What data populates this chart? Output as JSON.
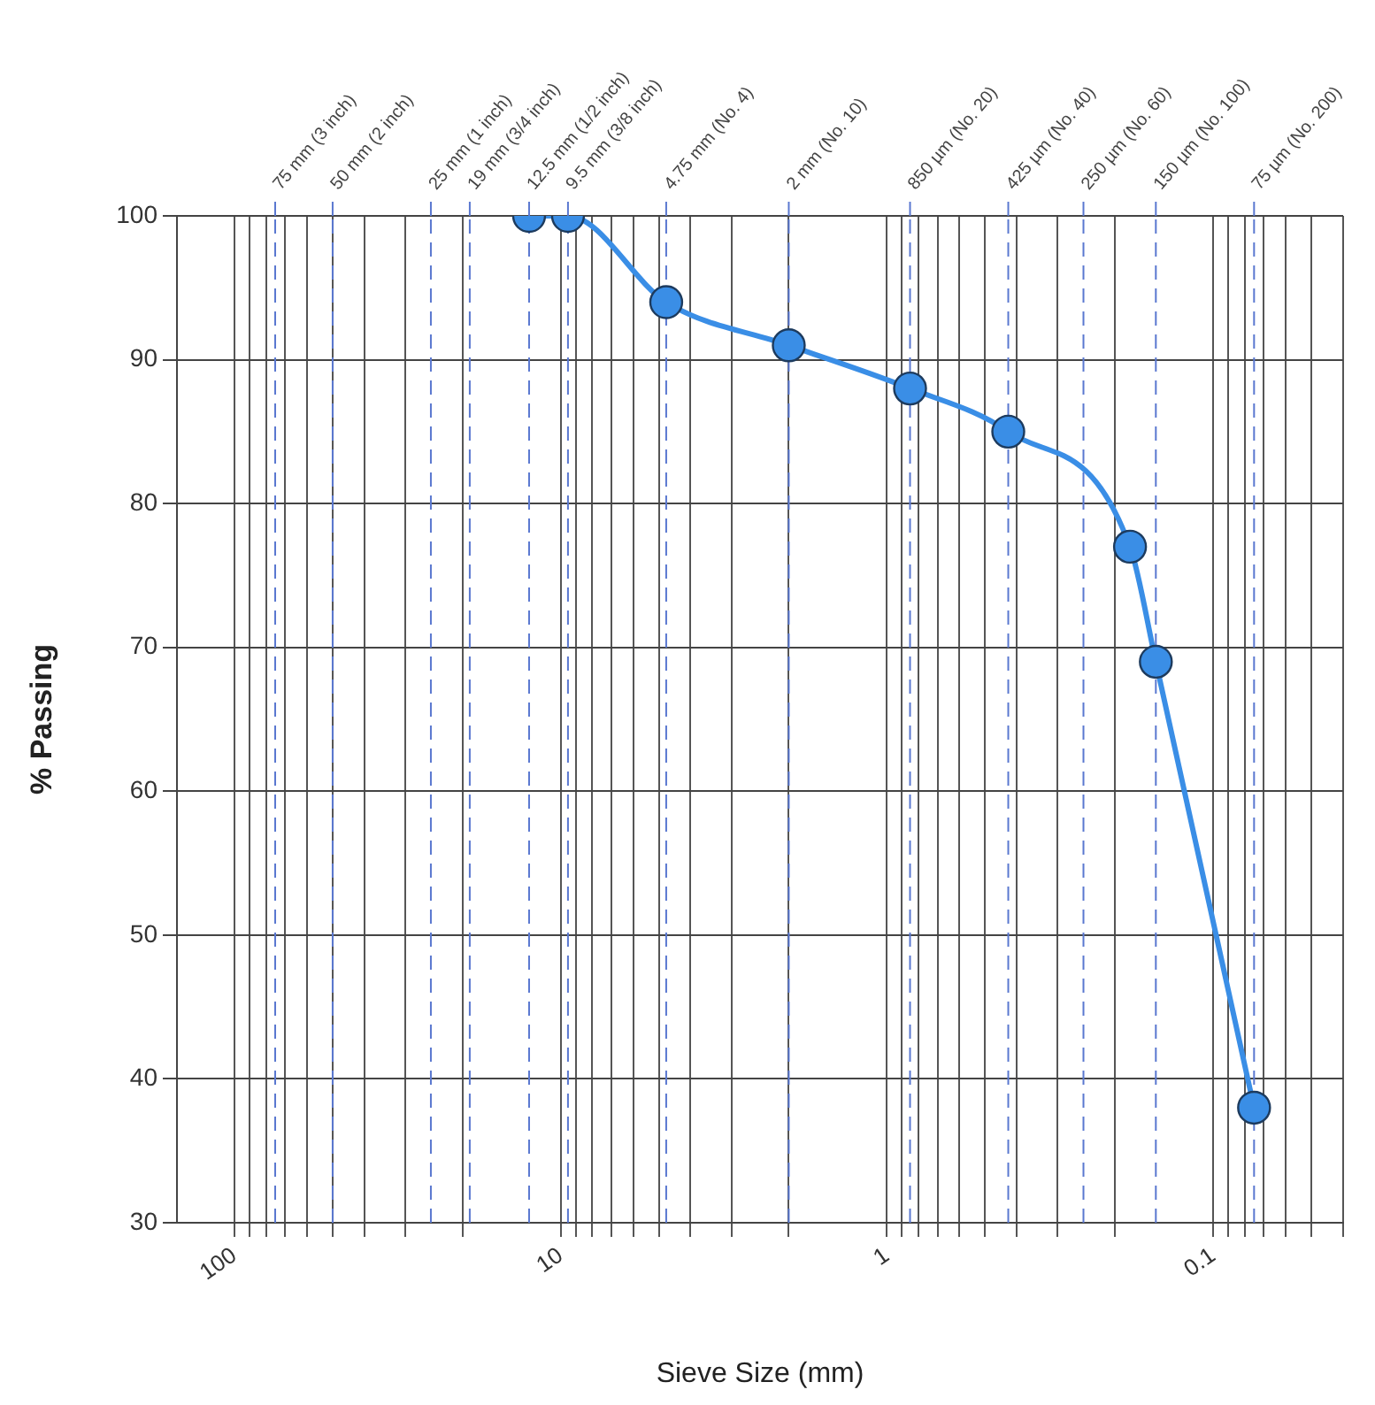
{
  "chart_data": {
    "type": "line",
    "xlabel": "Sieve Size (mm)",
    "ylabel": "% Passing",
    "x": [
      12.5,
      9.5,
      4.75,
      2,
      0.85,
      0.425,
      0.18,
      0.15,
      0.075
    ],
    "series": [
      {
        "color": "#3a8ee6",
        "values": [
          100,
          100,
          94,
          91,
          88,
          85,
          77,
          69,
          38
        ]
      }
    ],
    "log": "x",
    "xlim": [
      150,
      0.04
    ],
    "ylim": [
      30,
      100
    ],
    "xticks": [
      {
        "value": 100,
        "label": "100"
      },
      {
        "value": 90,
        "label": null
      },
      {
        "value": 80,
        "label": null
      },
      {
        "value": 70,
        "label": null
      },
      {
        "value": 60,
        "label": null
      },
      {
        "value": 50,
        "label": null
      },
      {
        "value": 40,
        "label": null
      },
      {
        "value": 30,
        "label": null
      },
      {
        "value": 20,
        "label": null
      },
      {
        "value": 10,
        "label": "10"
      },
      {
        "value": 9,
        "label": null
      },
      {
        "value": 8,
        "label": null
      },
      {
        "value": 7,
        "label": null
      },
      {
        "value": 6,
        "label": null
      },
      {
        "value": 5,
        "label": null
      },
      {
        "value": 4,
        "label": null
      },
      {
        "value": 3,
        "label": null
      },
      {
        "value": 2,
        "label": null
      },
      {
        "value": 1,
        "label": "1"
      },
      {
        "value": 0.9,
        "label": null
      },
      {
        "value": 0.8,
        "label": null
      },
      {
        "value": 0.7,
        "label": null
      },
      {
        "value": 0.6,
        "label": null
      },
      {
        "value": 0.5,
        "label": null
      },
      {
        "value": 0.4,
        "label": null
      },
      {
        "value": 0.3,
        "label": null
      },
      {
        "value": 0.2,
        "label": null
      },
      {
        "value": 0.1,
        "label": "0.1"
      },
      {
        "value": 0.09,
        "label": null
      },
      {
        "value": 0.08,
        "label": null
      },
      {
        "value": 0.07,
        "label": null
      },
      {
        "value": 0.06,
        "label": null
      },
      {
        "value": 0.05,
        "label": null
      },
      {
        "value": 0.04,
        "label": null
      }
    ],
    "yticks": [
      30,
      40,
      50,
      60,
      70,
      80,
      90,
      100
    ],
    "ref_lines": [
      {
        "axis": "x",
        "value": 75,
        "label": "75 mm (3 inch)",
        "color": "#5a78d0",
        "line_style": "dashed"
      },
      {
        "axis": "x",
        "value": 50,
        "label": "50 mm (2 inch)",
        "color": "#5a78d0",
        "line_style": "dashed"
      },
      {
        "axis": "x",
        "value": 25,
        "label": "25 mm (1 inch)",
        "color": "#5a78d0",
        "line_style": "dashed"
      },
      {
        "axis": "x",
        "value": 19,
        "label": "19 mm (3/4 inch)",
        "color": "#5a78d0",
        "line_style": "dashed"
      },
      {
        "axis": "x",
        "value": 12.5,
        "label": "12.5 mm (1/2 inch)",
        "color": "#5a78d0",
        "line_style": "dashed"
      },
      {
        "axis": "x",
        "value": 9.5,
        "label": "9.5 mm (3/8 inch)",
        "color": "#5a78d0",
        "line_style": "dashed"
      },
      {
        "axis": "x",
        "value": 4.75,
        "label": "4.75 mm (No. 4)",
        "color": "#5a78d0",
        "line_style": "dashed"
      },
      {
        "axis": "x",
        "value": 2,
        "label": "2 mm (No. 10)",
        "color": "#5a78d0",
        "line_style": "dashed"
      },
      {
        "axis": "x",
        "value": 0.85,
        "label": "850 µm (No. 20)",
        "color": "#5a78d0",
        "line_style": "dashed"
      },
      {
        "axis": "x",
        "value": 0.425,
        "label": "425 µm (No. 40)",
        "color": "#5a78d0",
        "line_style": "dashed"
      },
      {
        "axis": "x",
        "value": 0.25,
        "label": "250 µm (No. 60)",
        "color": "#5a78d0",
        "line_style": "dashed"
      },
      {
        "axis": "x",
        "value": 0.15,
        "label": "150 µm (No. 100)",
        "color": "#5a78d0",
        "line_style": "dashed"
      },
      {
        "axis": "x",
        "value": 0.075,
        "label": "75 µm (No. 200)",
        "color": "#5a78d0",
        "line_style": "dashed"
      }
    ],
    "grid": true,
    "marker": "circle",
    "line_style": "solid",
    "legend": false
  }
}
